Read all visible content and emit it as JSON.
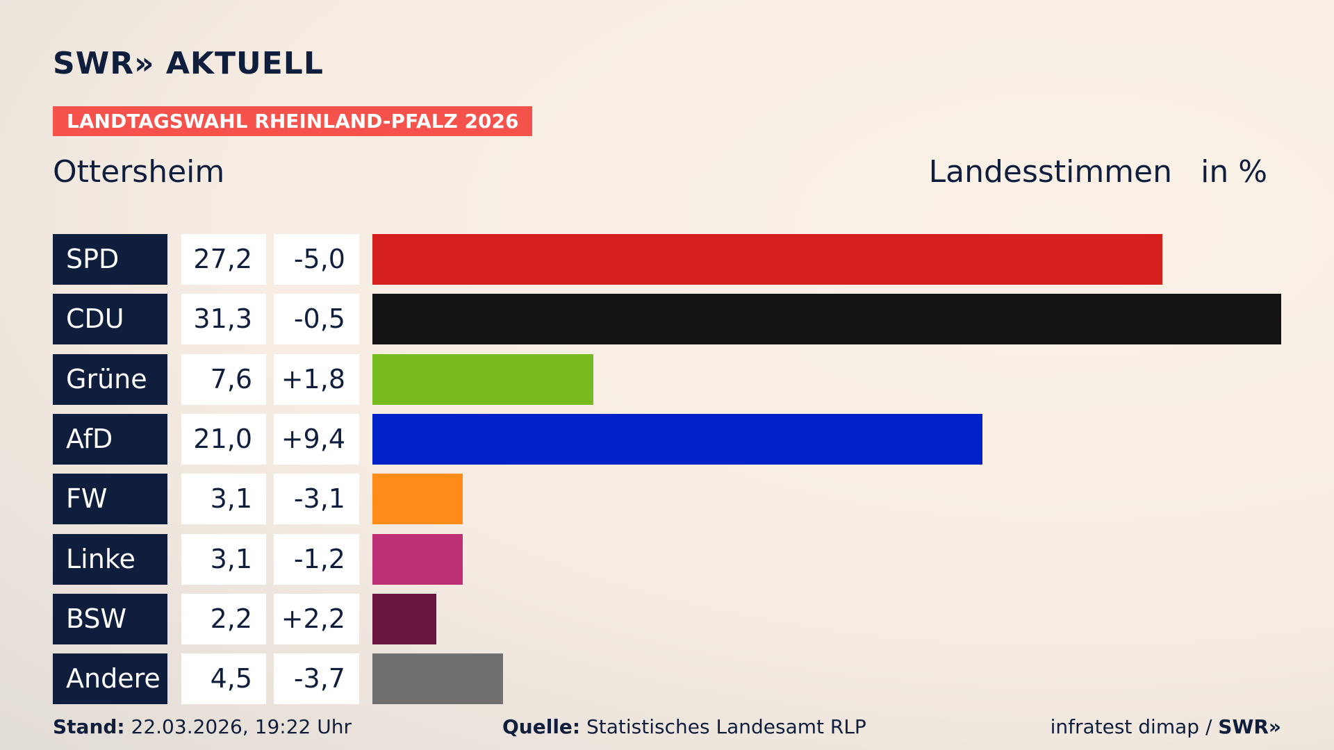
{
  "brand": "SWR» AKTUELL",
  "chart_data": {
    "type": "hbar",
    "title": "LANDTAGSWAHL RHEINLAND-PFALZ 2026",
    "subtitle": "Ottersheim",
    "value_label": "Landesstimmen",
    "unit_label": "in %",
    "categories": [
      "SPD",
      "CDU",
      "Grüne",
      "AfD",
      "FW",
      "Linke",
      "BSW",
      "Andere"
    ],
    "values": [
      27.2,
      31.3,
      7.6,
      21.0,
      3.1,
      3.1,
      2.2,
      4.5
    ],
    "value_labels": [
      "27,2",
      "31,3",
      "7,6",
      "21,0",
      "3,1",
      "3,1",
      "2,2",
      "4,5"
    ],
    "changes": [
      -5.0,
      -0.5,
      1.8,
      9.4,
      -3.1,
      -1.2,
      2.2,
      -3.7
    ],
    "change_labels": [
      "-5,0",
      "-0,5",
      "+1,8",
      "+9,4",
      "-3,1",
      "-1,2",
      "+2,2",
      "-3,7"
    ],
    "colors": [
      "#d62020",
      "#141414",
      "#78bb1e",
      "#0021c8",
      "#ff8c19",
      "#bd3075",
      "#6a1640",
      "#707070"
    ]
  },
  "footer": {
    "stand_label": "Stand:",
    "stand": "22.03.2026, 19:22 Uhr",
    "source_label": "Quelle:",
    "source": "Statistisches Landesamt RLP",
    "credit": "infratest dimap /",
    "credit_brand": "SWR»"
  }
}
